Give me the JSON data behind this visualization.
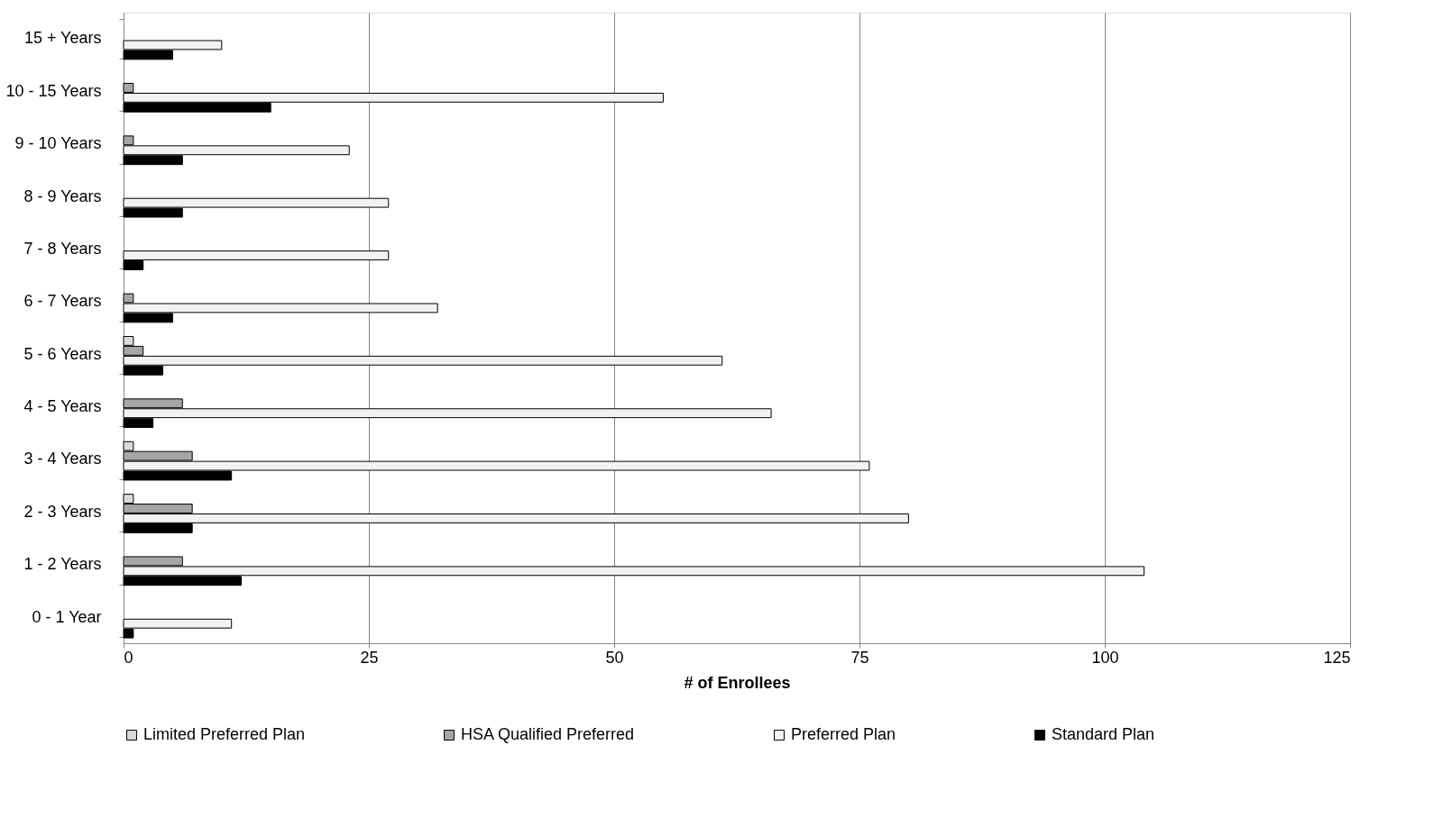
{
  "chart_data": {
    "type": "bar",
    "orientation": "horizontal",
    "xlabel": "# of Enrollees",
    "categories": [
      "15 + Years",
      "10 - 15 Years",
      "9 - 10 Years",
      "8 - 9 Years",
      "7 - 8 Years",
      "6 - 7 Years",
      "5 - 6 Years",
      "4 - 5 Years",
      "3 - 4 Years",
      "2 - 3 Years",
      "1 - 2 Years",
      "0 - 1 Year"
    ],
    "series": [
      {
        "name": "Limited Preferred Plan",
        "color": "#d9d9d9",
        "values": [
          0,
          0,
          0,
          0,
          0,
          0,
          1,
          0,
          1,
          1,
          0,
          0
        ]
      },
      {
        "name": "HSA Qualified Preferred",
        "color": "#a6a6a6",
        "values": [
          0,
          1,
          1,
          0,
          0,
          1,
          2,
          6,
          7,
          7,
          6,
          0
        ]
      },
      {
        "name": "Preferred Plan",
        "color": "#f2f2f2",
        "values": [
          10,
          55,
          23,
          27,
          27,
          32,
          61,
          66,
          76,
          80,
          104,
          11
        ]
      },
      {
        "name": "Standard Plan",
        "color": "#000000",
        "values": [
          5,
          15,
          6,
          6,
          2,
          5,
          4,
          3,
          11,
          7,
          12,
          1
        ]
      }
    ],
    "xlim": [
      0,
      125
    ],
    "xticks": [
      0,
      25,
      50,
      75,
      100,
      125
    ],
    "grid": "x",
    "legend": "bottom"
  }
}
